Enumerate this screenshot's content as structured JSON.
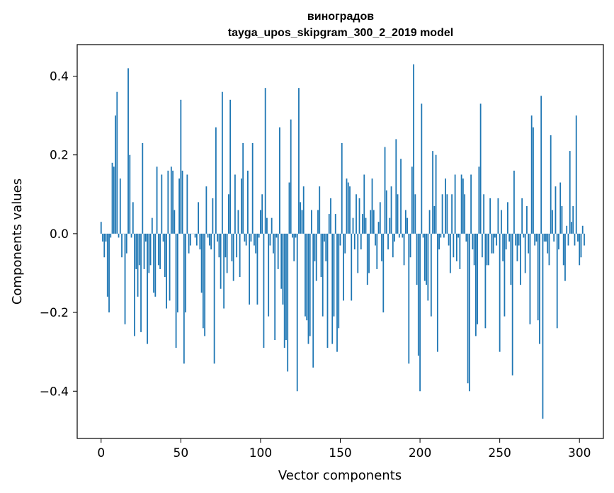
{
  "chart_data": {
    "type": "bar",
    "title": "виноградов",
    "subtitle": "tayga_upos_skipgram_300_2_2019 model",
    "xlabel": "Vector components",
    "ylabel": "Components values",
    "xlim": [
      -15,
      315
    ],
    "ylim": [
      -0.52,
      0.48
    ],
    "xticks": [
      0,
      50,
      100,
      150,
      200,
      250,
      300
    ],
    "xtick_labels": [
      "0",
      "50",
      "100",
      "150",
      "200",
      "250",
      "300"
    ],
    "yticks": [
      -0.4,
      -0.2,
      0.0,
      0.2,
      0.4
    ],
    "ytick_labels": [
      "−0.4",
      "−0.2",
      "0.0",
      "0.2",
      "0.4"
    ],
    "grid": false,
    "bar_color": "#1f77b4",
    "series": [
      {
        "values": [
          0.03,
          -0.02,
          -0.06,
          -0.02,
          -0.16,
          -0.2,
          -0.01,
          0.18,
          0.17,
          0.3,
          0.36,
          -0.01,
          0.14,
          -0.06,
          0.0,
          -0.23,
          -0.05,
          0.42,
          0.2,
          -0.01,
          0.08,
          -0.26,
          -0.09,
          -0.16,
          -0.08,
          -0.25,
          0.23,
          -0.09,
          -0.02,
          -0.28,
          -0.1,
          -0.08,
          0.04,
          -0.15,
          -0.16,
          0.17,
          -0.08,
          -0.09,
          0.15,
          -0.02,
          -0.11,
          -0.19,
          0.16,
          -0.17,
          0.17,
          0.16,
          0.06,
          -0.29,
          -0.2,
          0.14,
          0.34,
          0.16,
          -0.33,
          -0.2,
          0.15,
          -0.05,
          -0.03,
          0.0,
          0.0,
          -0.01,
          -0.03,
          0.08,
          -0.04,
          -0.15,
          -0.24,
          -0.26,
          0.12,
          -0.01,
          -0.03,
          -0.04,
          0.09,
          -0.33,
          0.27,
          -0.02,
          -0.06,
          -0.14,
          0.36,
          -0.19,
          -0.06,
          -0.1,
          0.1,
          0.34,
          -0.07,
          -0.12,
          0.15,
          -0.06,
          0.06,
          -0.11,
          0.14,
          0.23,
          -0.02,
          -0.03,
          0.16,
          -0.18,
          -0.02,
          0.23,
          -0.03,
          -0.05,
          -0.18,
          -0.01,
          0.06,
          0.1,
          -0.29,
          0.37,
          0.04,
          -0.21,
          -0.03,
          0.04,
          -0.05,
          -0.27,
          -0.01,
          -0.09,
          0.27,
          -0.14,
          -0.18,
          -0.29,
          -0.27,
          -0.35,
          0.13,
          0.29,
          -0.01,
          -0.07,
          -0.01,
          -0.4,
          0.37,
          0.08,
          0.06,
          0.12,
          -0.21,
          -0.22,
          -0.28,
          -0.26,
          0.06,
          -0.34,
          -0.07,
          -0.12,
          0.06,
          0.12,
          -0.11,
          -0.21,
          -0.02,
          -0.07,
          -0.29,
          0.05,
          0.09,
          -0.28,
          -0.21,
          0.05,
          -0.3,
          -0.24,
          -0.03,
          0.23,
          -0.17,
          -0.05,
          0.14,
          0.13,
          0.12,
          -0.17,
          0.04,
          -0.04,
          0.1,
          -0.1,
          0.09,
          -0.04,
          0.05,
          0.15,
          0.04,
          -0.13,
          -0.1,
          0.06,
          0.14,
          0.06,
          -0.03,
          -0.09,
          0.03,
          0.08,
          -0.07,
          -0.2,
          0.22,
          0.11,
          -0.04,
          0.04,
          0.12,
          -0.06,
          -0.02,
          0.24,
          0.1,
          -0.01,
          0.19,
          -0.01,
          -0.08,
          0.06,
          0.04,
          -0.33,
          -0.06,
          0.17,
          0.43,
          0.1,
          -0.13,
          -0.31,
          -0.4,
          0.33,
          -0.01,
          -0.12,
          -0.13,
          -0.17,
          0.06,
          -0.21,
          0.21,
          0.07,
          0.2,
          -0.3,
          -0.04,
          -0.01,
          0.1,
          -0.01,
          0.14,
          0.1,
          -0.03,
          -0.1,
          0.1,
          -0.06,
          0.15,
          -0.07,
          -0.01,
          -0.09,
          0.15,
          0.14,
          0.1,
          -0.02,
          -0.38,
          -0.4,
          0.15,
          -0.04,
          -0.08,
          -0.26,
          -0.23,
          0.17,
          0.33,
          -0.06,
          0.1,
          -0.24,
          -0.08,
          -0.08,
          0.09,
          -0.05,
          -0.05,
          -0.01,
          -0.03,
          0.09,
          -0.3,
          0.06,
          -0.07,
          -0.21,
          -0.04,
          0.08,
          -0.02,
          -0.13,
          -0.36,
          0.16,
          -0.03,
          -0.07,
          -0.03,
          -0.13,
          0.09,
          -0.01,
          -0.1,
          0.07,
          -0.05,
          -0.23,
          0.3,
          0.27,
          -0.03,
          -0.02,
          -0.22,
          -0.28,
          0.35,
          -0.47,
          -0.02,
          -0.02,
          -0.05,
          -0.08,
          0.25,
          0.06,
          -0.02,
          0.12,
          -0.24,
          -0.04,
          0.13,
          0.07,
          -0.08,
          -0.12,
          0.02,
          -0.03,
          0.21,
          0.03,
          0.07,
          -0.03,
          0.3,
          -0.02,
          -0.08,
          -0.06,
          0.02,
          -0.03
        ]
      }
    ]
  }
}
